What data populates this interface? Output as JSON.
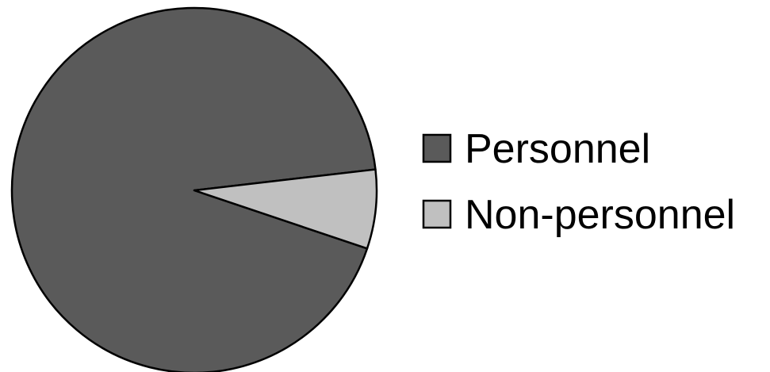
{
  "chart_data": {
    "type": "pie",
    "title": "",
    "slices": [
      {
        "label": "Personnel",
        "value": 93,
        "color": "#5a5a5a"
      },
      {
        "label": "Non-personnel",
        "value": 7,
        "color": "#c0c0c0"
      }
    ],
    "legend_position": "right",
    "slice_outline_color": "#000000"
  }
}
